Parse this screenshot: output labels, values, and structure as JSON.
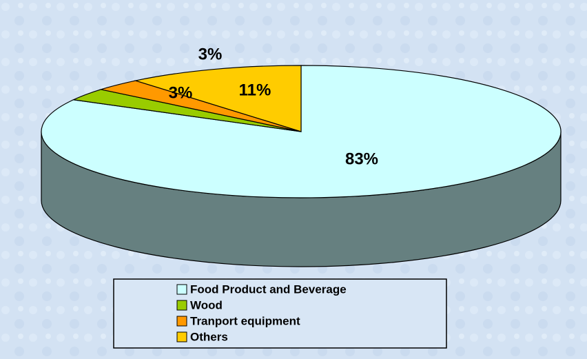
{
  "chart_data": {
    "type": "pie3d",
    "categories": [
      "Food Product and Beverage",
      "Wood",
      "Tranport equipment",
      "Others"
    ],
    "values": [
      83,
      3,
      3,
      11
    ],
    "value_labels": [
      "83%",
      "3%",
      "3%",
      "11%"
    ],
    "colors": [
      "#ccffff",
      "#99cc00",
      "#ff9900",
      "#ffcc00"
    ],
    "legend": "bottom"
  }
}
